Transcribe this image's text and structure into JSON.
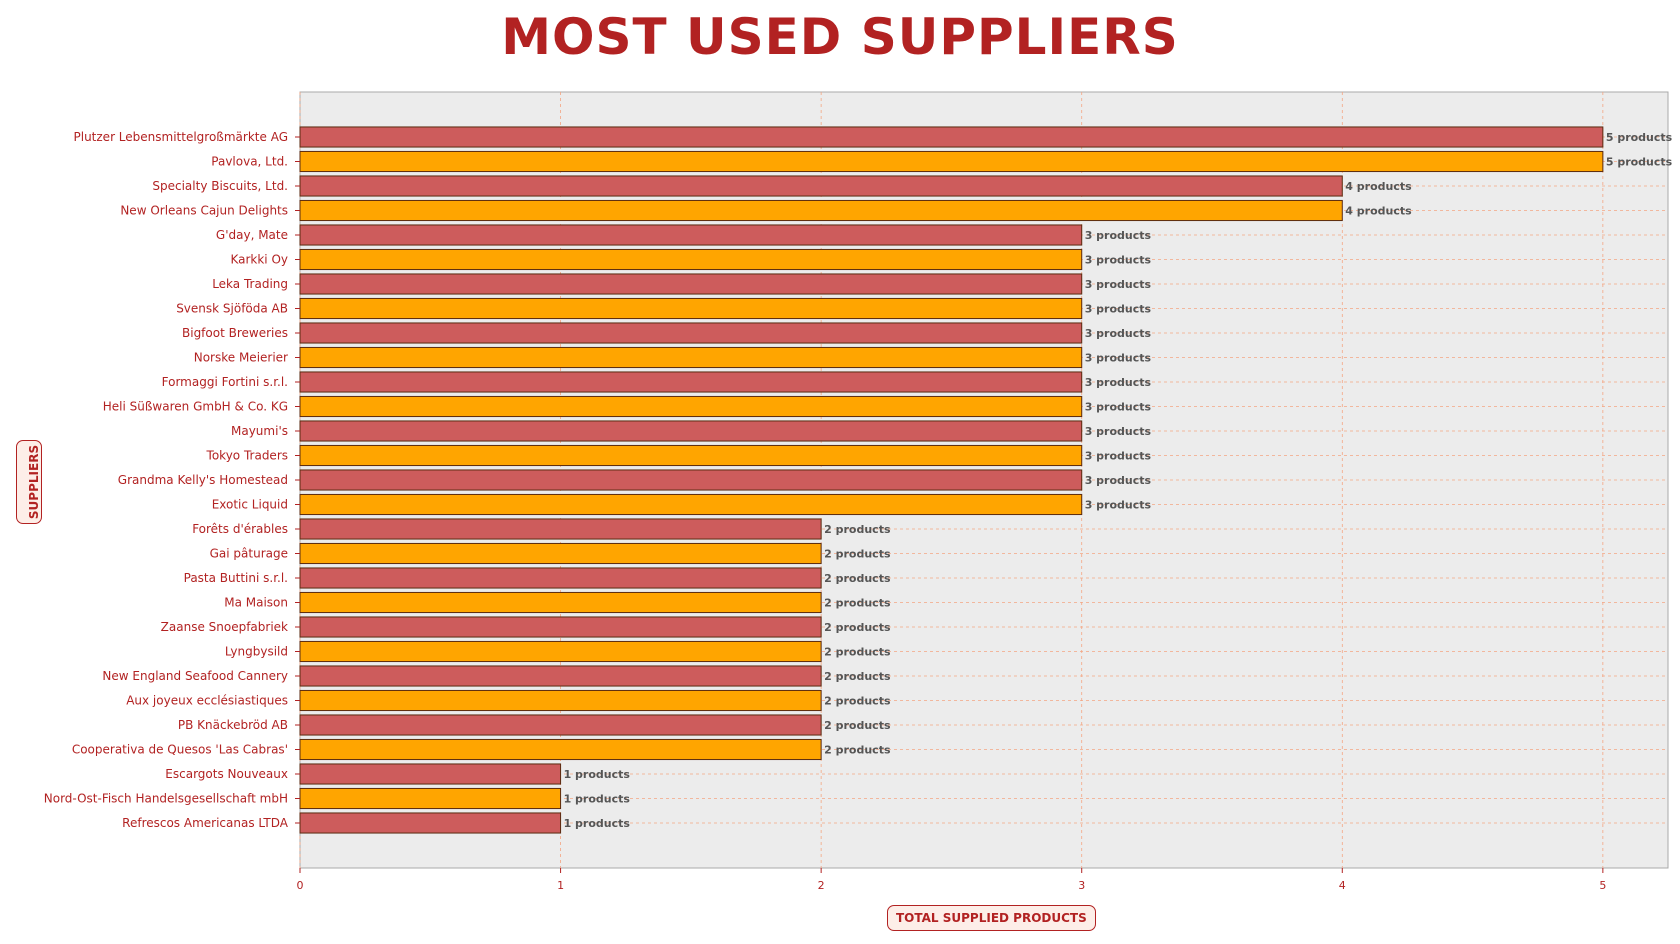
{
  "chart_data": {
    "type": "bar",
    "orientation": "horizontal",
    "title": "MOST USED SUPPLIERS",
    "xlabel": "TOTAL SUPPLIED PRODUCTS",
    "ylabel": "SUPPLIERS",
    "xlim": [
      0,
      5.25
    ],
    "xticks": [
      0,
      1,
      2,
      3,
      4,
      5
    ],
    "grid": true,
    "value_label_suffix": " products",
    "bar_colors": [
      "#cd5c5c",
      "#ffa500"
    ],
    "categories": [
      "Plutzer Lebensmittelgroßmärkte AG",
      "Pavlova, Ltd.",
      "Specialty Biscuits, Ltd.",
      "New Orleans Cajun Delights",
      "G'day, Mate",
      "Karkki Oy",
      "Leka Trading",
      "Svensk Sjöföda AB",
      "Bigfoot Breweries",
      "Norske Meierier",
      "Formaggi Fortini s.r.l.",
      "Heli Süßwaren GmbH & Co. KG",
      "Mayumi's",
      "Tokyo Traders",
      "Grandma Kelly's Homestead",
      "Exotic Liquid",
      "Forêts d'érables",
      "Gai pâturage",
      "Pasta Buttini s.r.l.",
      "Ma Maison",
      "Zaanse Snoepfabriek",
      "Lyngbysild",
      "New England Seafood Cannery",
      "Aux joyeux ecclésiastiques",
      "PB Knäckebröd AB",
      "Cooperativa de Quesos 'Las Cabras'",
      "Escargots Nouveaux",
      "Nord-Ost-Fisch Handelsgesellschaft mbH",
      "Refrescos Americanas LTDA"
    ],
    "values": [
      5,
      5,
      4,
      4,
      3,
      3,
      3,
      3,
      3,
      3,
      3,
      3,
      3,
      3,
      3,
      3,
      2,
      2,
      2,
      2,
      2,
      2,
      2,
      2,
      2,
      2,
      1,
      1,
      1
    ]
  }
}
